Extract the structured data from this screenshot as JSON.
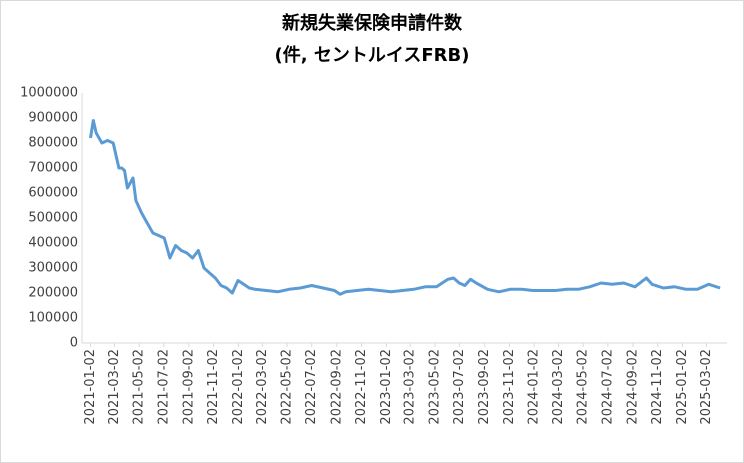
{
  "chart_data": {
    "type": "line",
    "title": "新規失業保険申請件数",
    "subtitle": "(件, セントルイスFRB)",
    "x": [
      "2021-01-02",
      "2021-01-09",
      "2021-01-16",
      "2021-01-30",
      "2021-02-13",
      "2021-02-27",
      "2021-03-13",
      "2021-03-20",
      "2021-03-27",
      "2021-04-03",
      "2021-04-17",
      "2021-04-24",
      "2021-05-08",
      "2021-05-22",
      "2021-06-05",
      "2021-06-19",
      "2021-07-03",
      "2021-07-10",
      "2021-07-17",
      "2021-07-31",
      "2021-08-14",
      "2021-08-28",
      "2021-09-11",
      "2021-09-25",
      "2021-10-09",
      "2021-10-23",
      "2021-11-06",
      "2021-11-20",
      "2021-12-04",
      "2021-12-18",
      "2022-01-01",
      "2022-01-15",
      "2022-01-29",
      "2022-02-12",
      "2022-03-12",
      "2022-04-09",
      "2022-05-07",
      "2022-06-04",
      "2022-07-02",
      "2022-07-30",
      "2022-08-27",
      "2022-09-10",
      "2022-09-24",
      "2022-10-22",
      "2022-11-19",
      "2022-12-17",
      "2023-01-14",
      "2023-02-11",
      "2023-03-11",
      "2023-04-08",
      "2023-05-06",
      "2023-06-03",
      "2023-06-17",
      "2023-07-01",
      "2023-07-15",
      "2023-07-29",
      "2023-08-12",
      "2023-09-09",
      "2023-10-07",
      "2023-11-04",
      "2023-12-02",
      "2023-12-30",
      "2024-01-27",
      "2024-02-24",
      "2024-03-23",
      "2024-04-20",
      "2024-05-18",
      "2024-06-15",
      "2024-07-13",
      "2024-08-10",
      "2024-09-07",
      "2024-10-05",
      "2024-10-19",
      "2024-11-16",
      "2024-12-14",
      "2025-01-11",
      "2025-02-08",
      "2025-03-08",
      "2025-04-05"
    ],
    "series": [
      {
        "name": "新規失業保険申請件数",
        "color": "#5b9bd5",
        "values": [
          820000,
          890000,
          840000,
          800000,
          810000,
          800000,
          700000,
          700000,
          690000,
          620000,
          660000,
          570000,
          520000,
          480000,
          440000,
          430000,
          420000,
          380000,
          340000,
          390000,
          370000,
          360000,
          340000,
          370000,
          300000,
          280000,
          260000,
          230000,
          220000,
          200000,
          250000,
          235000,
          220000,
          215000,
          210000,
          205000,
          215000,
          220000,
          230000,
          220000,
          210000,
          195000,
          205000,
          210000,
          215000,
          210000,
          205000,
          210000,
          215000,
          225000,
          225000,
          255000,
          260000,
          240000,
          230000,
          255000,
          240000,
          215000,
          205000,
          215000,
          215000,
          210000,
          210000,
          210000,
          215000,
          215000,
          225000,
          240000,
          235000,
          240000,
          225000,
          260000,
          235000,
          220000,
          225000,
          215000,
          215000,
          235000,
          220000
        ]
      }
    ],
    "ylim": [
      0,
      1000000
    ],
    "yticks": [
      0,
      100000,
      200000,
      300000,
      400000,
      500000,
      600000,
      700000,
      800000,
      900000,
      1000000
    ],
    "xlim": [
      "2020-12-12",
      "2025-04-22"
    ],
    "xticks": [
      "2021-01-02",
      "2021-03-02",
      "2021-05-02",
      "2021-07-02",
      "2021-09-02",
      "2021-11-02",
      "2022-01-02",
      "2022-03-02",
      "2022-05-02",
      "2022-07-02",
      "2022-09-02",
      "2022-11-02",
      "2023-01-02",
      "2023-03-02",
      "2023-05-02",
      "2023-07-02",
      "2023-09-02",
      "2023-11-02",
      "2024-01-02",
      "2024-03-02",
      "2024-05-02",
      "2024-07-02",
      "2024-09-02",
      "2024-11-02",
      "2025-01-02",
      "2025-03-02"
    ],
    "grid": false
  }
}
